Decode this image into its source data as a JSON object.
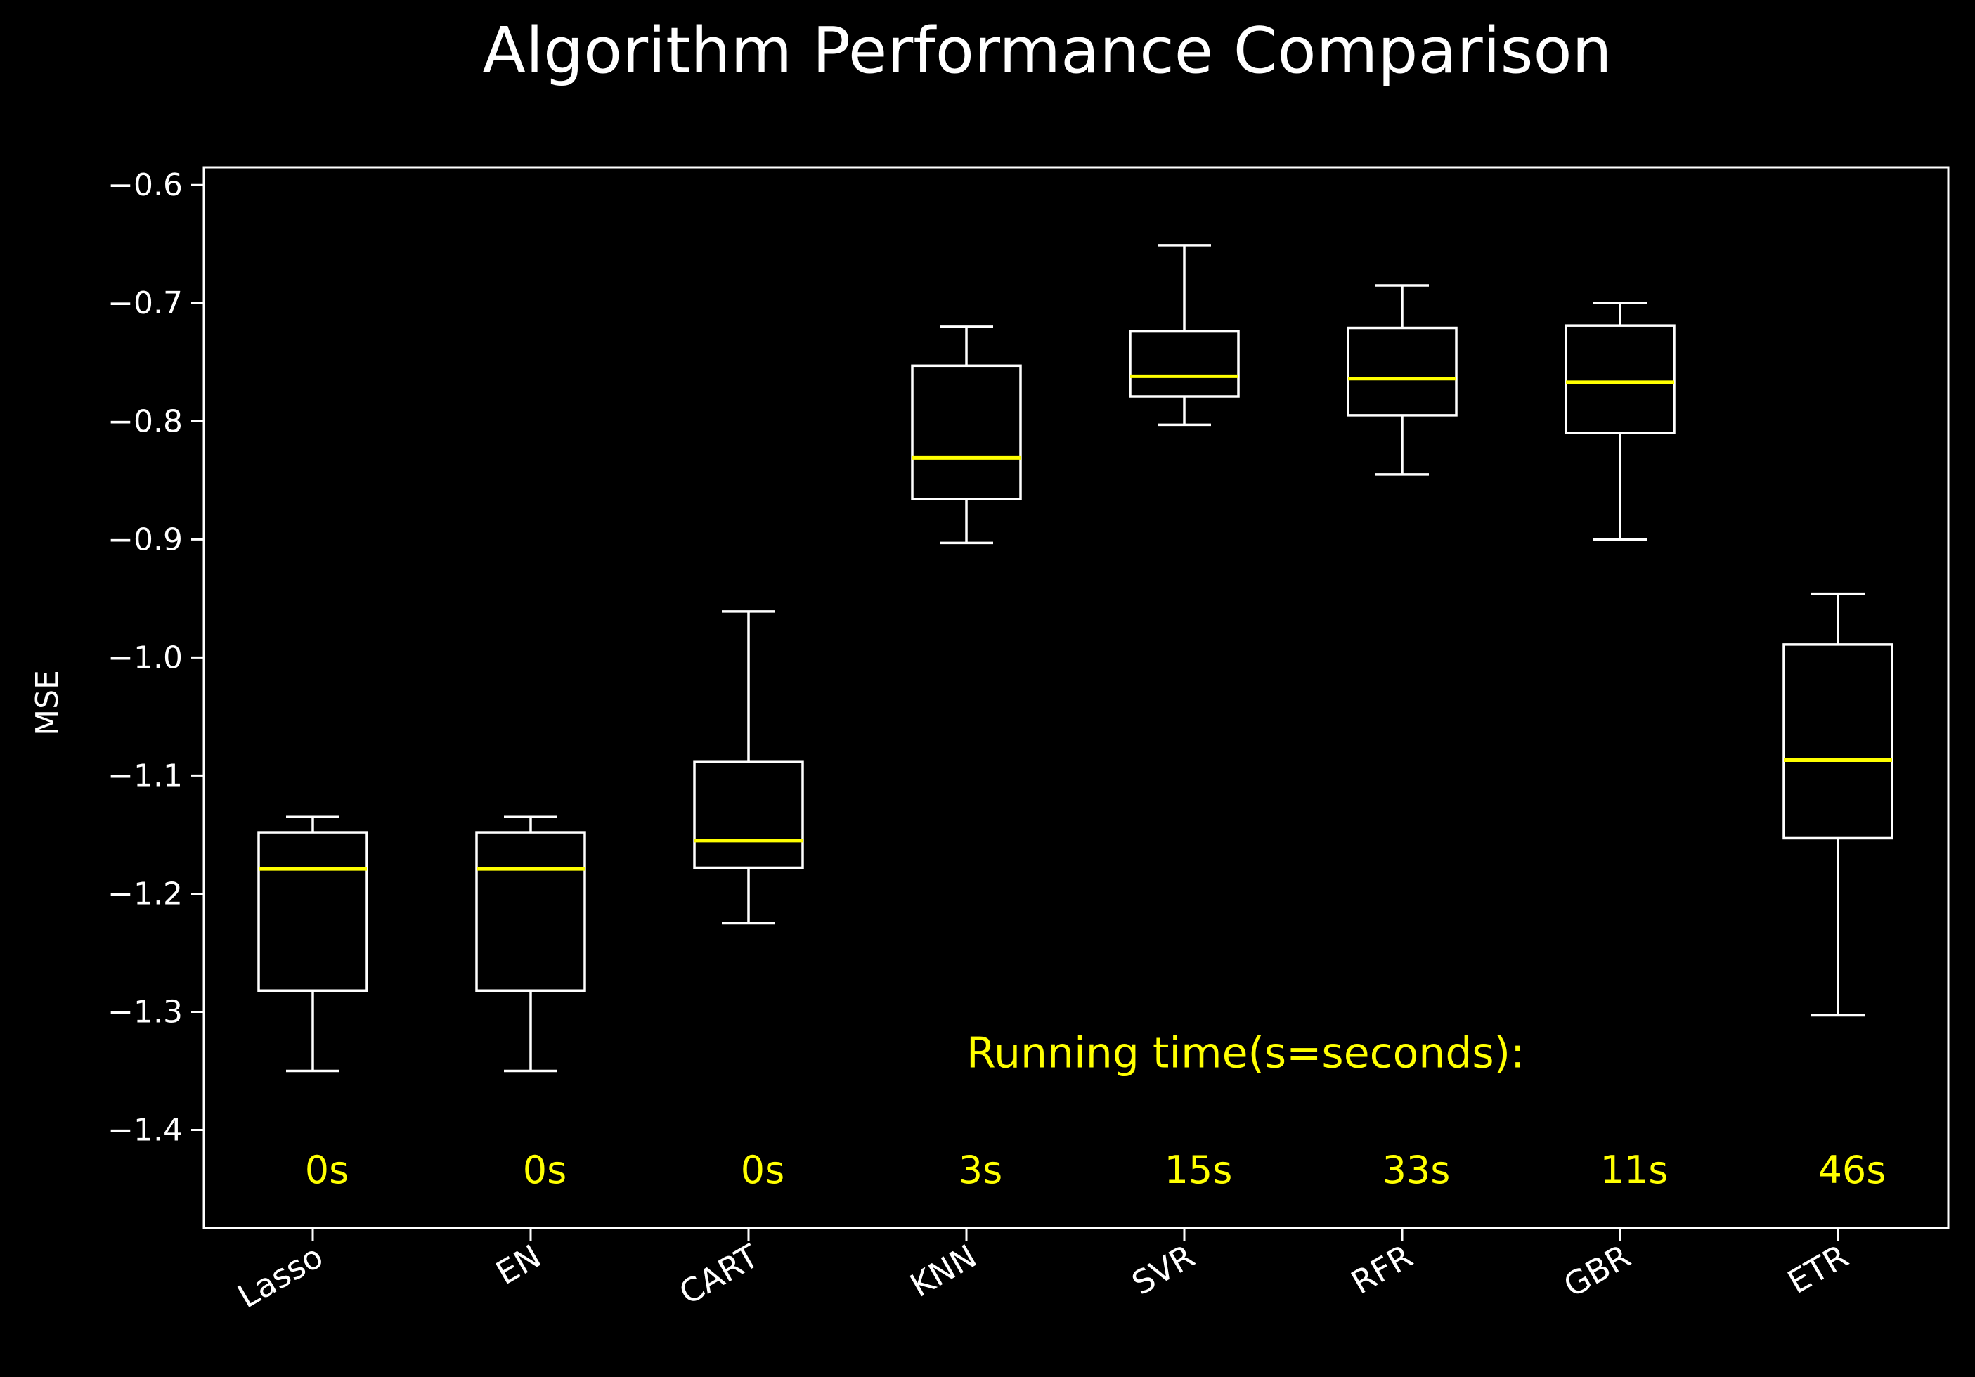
{
  "colors": {
    "background": "#000000",
    "foreground": "#ffffff",
    "accent": "#ffff00"
  },
  "chart_data": {
    "type": "box",
    "title": "Algorithm Performance Comparison",
    "xlabel": "",
    "ylabel": "MSE",
    "ylim": [
      -1.483,
      -0.585
    ],
    "yticks": [
      -0.6,
      -0.7,
      -0.8,
      -0.9,
      -1.0,
      -1.1,
      -1.2,
      -1.3,
      -1.4
    ],
    "ytick_labels": [
      "−0.6",
      "−0.7",
      "−0.8",
      "−0.9",
      "−1.0",
      "−1.1",
      "−1.2",
      "−1.3",
      "−1.4"
    ],
    "categories": [
      "Lasso",
      "EN",
      "CART",
      "KNN",
      "SVR",
      "RFR",
      "GBR",
      "ETR"
    ],
    "boxes": [
      {
        "name": "Lasso",
        "whisker_low": -1.35,
        "q1": -1.282,
        "median": -1.179,
        "q3": -1.148,
        "whisker_high": -1.135
      },
      {
        "name": "EN",
        "whisker_low": -1.35,
        "q1": -1.282,
        "median": -1.179,
        "q3": -1.148,
        "whisker_high": -1.135
      },
      {
        "name": "CART",
        "whisker_low": -1.225,
        "q1": -1.178,
        "median": -1.155,
        "q3": -1.088,
        "whisker_high": -0.961
      },
      {
        "name": "KNN",
        "whisker_low": -0.903,
        "q1": -0.866,
        "median": -0.831,
        "q3": -0.753,
        "whisker_high": -0.72
      },
      {
        "name": "SVR",
        "whisker_low": -0.803,
        "q1": -0.779,
        "median": -0.762,
        "q3": -0.724,
        "whisker_high": -0.651
      },
      {
        "name": "RFR",
        "whisker_low": -0.845,
        "q1": -0.795,
        "median": -0.764,
        "q3": -0.721,
        "whisker_high": -0.685
      },
      {
        "name": "GBR",
        "whisker_low": -0.9,
        "q1": -0.81,
        "median": -0.767,
        "q3": -0.719,
        "whisker_high": -0.7
      },
      {
        "name": "ETR",
        "whisker_low": -1.303,
        "q1": -1.153,
        "median": -1.087,
        "q3": -0.989,
        "whisker_high": -0.946
      }
    ],
    "annotation": {
      "text": "Running time(s=seconds):",
      "y": -1.335
    },
    "running_times": {
      "y": -1.433,
      "labels": [
        "0s",
        "0s",
        "0s",
        "3s",
        "15s",
        "33s",
        "11s",
        "46s"
      ]
    },
    "grid": false,
    "legend": "none"
  }
}
